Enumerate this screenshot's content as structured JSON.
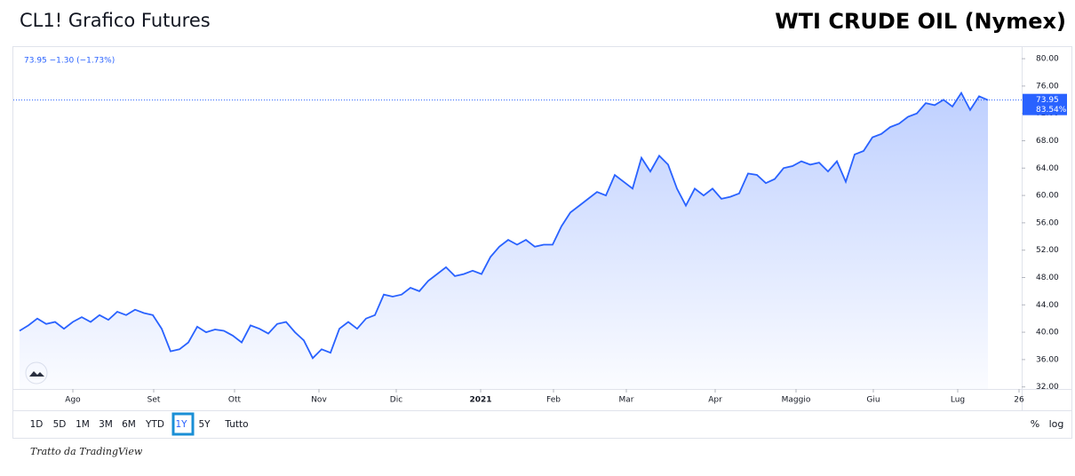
{
  "header": {
    "title": "CL1! Grafico Futures",
    "badge": "WTI CRUDE OIL (Nymex)"
  },
  "chart_data": {
    "type": "line",
    "legend_text": "73.95  −1.30 (−1.73%)",
    "price_label": "73.95",
    "percent_label": "83.54%",
    "series": [
      {
        "name": "CL1!",
        "color": "#2962ff",
        "values": [
          40.2,
          41,
          42,
          41.2,
          41.5,
          40.5,
          41.5,
          42.2,
          41.5,
          42.5,
          41.8,
          43,
          42.5,
          43.3,
          42.8,
          42.5,
          40.5,
          37.2,
          37.5,
          38.5,
          40.8,
          40,
          40.4,
          40.2,
          39.5,
          38.5,
          41,
          40.5,
          39.8,
          41.2,
          41.5,
          40,
          38.8,
          36.2,
          37.5,
          37,
          40.5,
          41.5,
          40.5,
          42,
          42.5,
          45.5,
          45.2,
          45.5,
          46.5,
          46,
          47.5,
          48.5,
          49.5,
          48.2,
          48.5,
          49,
          48.5,
          51,
          52.5,
          53.5,
          52.8,
          53.5,
          52.5,
          52.8,
          52.8,
          55.5,
          57.5,
          58.5,
          59.5,
          60.5,
          60,
          63,
          62,
          61,
          65.5,
          63.5,
          65.8,
          64.5,
          61,
          58.5,
          61,
          60,
          61,
          59.5,
          59.8,
          60.3,
          63.2,
          63,
          61.8,
          62.4,
          64,
          64.3,
          65,
          64.5,
          64.8,
          63.5,
          65,
          62,
          66,
          66.5,
          68.5,
          69,
          70,
          70.5,
          71.5,
          72,
          73.5,
          73.2,
          74,
          73,
          75,
          72.5,
          74.5,
          73.95
        ]
      }
    ],
    "xlim": [
      0,
      112.8
    ],
    "xticks": [
      {
        "value": 6,
        "label": "Ago"
      },
      {
        "value": 15.1,
        "label": "Set"
      },
      {
        "value": 24.2,
        "label": "Ott"
      },
      {
        "value": 33.7,
        "label": "Nov"
      },
      {
        "value": 42.4,
        "label": "Dic"
      },
      {
        "value": 51.9,
        "label": "2021"
      },
      {
        "value": 60.1,
        "label": "Feb"
      },
      {
        "value": 68.3,
        "label": "Mar"
      },
      {
        "value": 78.3,
        "label": "Apr"
      },
      {
        "value": 87.4,
        "label": "Maggio"
      },
      {
        "value": 96.1,
        "label": "Giu"
      },
      {
        "value": 105.6,
        "label": "Lug"
      },
      {
        "value": 112.5,
        "label": "26"
      }
    ],
    "ylim": [
      31.7,
      81.7
    ],
    "yticks": [
      {
        "value": 32,
        "label": "32.00"
      },
      {
        "value": 36,
        "label": "36.00"
      },
      {
        "value": 40,
        "label": "40.00"
      },
      {
        "value": 44,
        "label": "44.00"
      },
      {
        "value": 48,
        "label": "48.00"
      },
      {
        "value": 52,
        "label": "52.00"
      },
      {
        "value": 56,
        "label": "56.00"
      },
      {
        "value": 60,
        "label": "60.00"
      },
      {
        "value": 64,
        "label": "64.00"
      },
      {
        "value": 68,
        "label": "68.00"
      },
      {
        "value": 72,
        "label": "72.00"
      },
      {
        "value": 76,
        "label": "76.00"
      },
      {
        "value": 80,
        "label": "80.00"
      }
    ]
  },
  "toolbar": {
    "ranges": [
      "1D",
      "5D",
      "1M",
      "3M",
      "6M",
      "YTD",
      "1Y",
      "5Y",
      "Tutto"
    ],
    "active": "1Y",
    "right": [
      "%",
      "log"
    ]
  },
  "footer": "Tratto da TradingView"
}
